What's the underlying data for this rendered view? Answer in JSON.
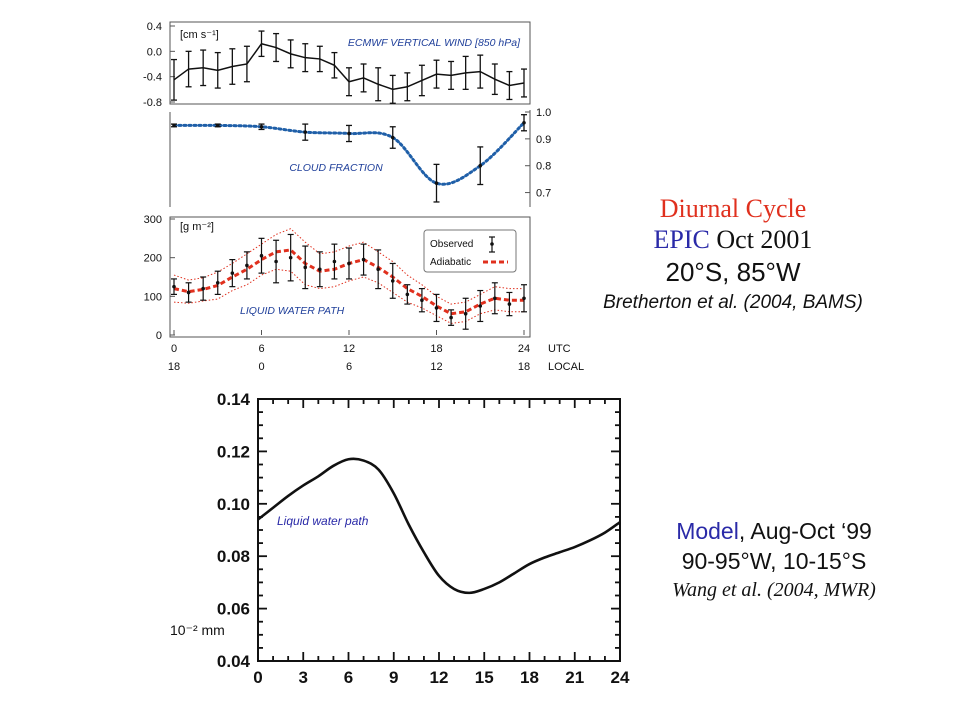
{
  "slide": {
    "epic": {
      "line1": "Diurnal Cycle",
      "line2_a": "EPIC",
      "line2_b": " Oct 2001",
      "line3": "20°S, 85°W",
      "line4": "Bretherton et al. (2004, BAMS)"
    },
    "model": {
      "line1_a": "Model",
      "line1_b": ", Aug-Oct ‘99",
      "line2": "90-95°W, 10-15°S",
      "line3": "Wang et al. (2004, MWR)"
    },
    "colors": {
      "red": "#e0301e",
      "blue": "#2a2aa8",
      "dotted_blue": "#1f5fa8",
      "black": "#111111"
    }
  },
  "chart_data": [
    {
      "type": "line",
      "title": "ECMWF VERTICAL WIND [850 hPa]",
      "unit_label": "[cm s⁻¹]",
      "x": [
        0,
        1,
        2,
        3,
        4,
        5,
        6,
        7,
        8,
        9,
        10,
        11,
        12,
        13,
        14,
        15,
        16,
        17,
        18,
        19,
        20,
        21,
        22,
        23,
        24
      ],
      "values": [
        -0.45,
        -0.28,
        -0.26,
        -0.3,
        -0.24,
        -0.2,
        0.12,
        0.06,
        -0.04,
        -0.1,
        -0.12,
        -0.22,
        -0.48,
        -0.42,
        -0.52,
        -0.6,
        -0.56,
        -0.46,
        -0.36,
        -0.38,
        -0.34,
        -0.32,
        -0.44,
        -0.54,
        -0.5
      ],
      "error": [
        0.32,
        0.28,
        0.28,
        0.28,
        0.28,
        0.28,
        0.2,
        0.22,
        0.22,
        0.22,
        0.2,
        0.2,
        0.22,
        0.22,
        0.26,
        0.22,
        0.22,
        0.24,
        0.22,
        0.22,
        0.26,
        0.26,
        0.24,
        0.22,
        0.22
      ],
      "yticks": [
        {
          "v": 0.4,
          "t": "0.4"
        },
        {
          "v": 0.0,
          "t": "0.0"
        },
        {
          "v": -0.4,
          "t": "-0.4"
        },
        {
          "v": -0.8,
          "t": "-0.8"
        }
      ],
      "ylim": [
        -0.8,
        0.4
      ]
    },
    {
      "type": "line",
      "title": "CLOUD FRACTION",
      "x": [
        0,
        3,
        6,
        9,
        12,
        15,
        18,
        21,
        24
      ],
      "values": [
        0.95,
        0.95,
        0.945,
        0.925,
        0.92,
        0.905,
        0.735,
        0.8,
        0.96
      ],
      "error": [
        0.005,
        0.005,
        0.01,
        0.03,
        0.03,
        0.04,
        0.07,
        0.07,
        0.03
      ],
      "yticks": [
        {
          "v": 1.0,
          "t": "1.0"
        },
        {
          "v": 0.9,
          "t": "0.9"
        },
        {
          "v": 0.8,
          "t": "0.8"
        },
        {
          "v": 0.7,
          "t": "0.7"
        }
      ],
      "ylim": [
        0.65,
        1.0
      ]
    },
    {
      "type": "line",
      "title": "LIQUID WATER PATH",
      "unit_label": "[g m⁻²]",
      "x": [
        0,
        1,
        2,
        3,
        4,
        5,
        6,
        7,
        8,
        9,
        10,
        11,
        12,
        13,
        14,
        15,
        16,
        17,
        18,
        19,
        20,
        21,
        22,
        23,
        24
      ],
      "observed": [
        125,
        110,
        120,
        135,
        160,
        180,
        205,
        190,
        200,
        175,
        170,
        190,
        185,
        195,
        170,
        140,
        105,
        90,
        70,
        45,
        55,
        75,
        95,
        80,
        95
      ],
      "observed_error": [
        20,
        25,
        30,
        30,
        35,
        35,
        45,
        55,
        60,
        55,
        45,
        45,
        40,
        40,
        50,
        45,
        25,
        30,
        35,
        20,
        40,
        40,
        40,
        30,
        35
      ],
      "adiabatic": [
        120,
        112,
        118,
        128,
        150,
        170,
        195,
        215,
        220,
        185,
        165,
        170,
        185,
        195,
        175,
        150,
        120,
        100,
        75,
        55,
        60,
        80,
        95,
        90,
        90
      ],
      "adiabatic_band": [
        35,
        30,
        30,
        35,
        35,
        40,
        40,
        45,
        55,
        55,
        45,
        45,
        45,
        45,
        40,
        40,
        35,
        30,
        25,
        25,
        25,
        25,
        30,
        30,
        30
      ],
      "yticks": [
        {
          "v": 300,
          "t": "300"
        },
        {
          "v": 200,
          "t": "200"
        },
        {
          "v": 100,
          "t": "100"
        },
        {
          "v": 0,
          "t": "0"
        }
      ],
      "ylim": [
        0,
        300
      ],
      "legend": [
        {
          "label": "Observed"
        },
        {
          "label": "Adiabatic"
        }
      ],
      "xticks": [
        {
          "v": 0,
          "t": "0"
        },
        {
          "v": 6,
          "t": "6"
        },
        {
          "v": 12,
          "t": "12"
        },
        {
          "v": 18,
          "t": "18"
        },
        {
          "v": 24,
          "t": "24"
        }
      ],
      "xlabel_utc": "UTC",
      "xticks_local": [
        {
          "v": 0,
          "t": "18"
        },
        {
          "v": 6,
          "t": "0"
        },
        {
          "v": 12,
          "t": "6"
        },
        {
          "v": 18,
          "t": "12"
        },
        {
          "v": 24,
          "t": "18"
        }
      ],
      "xlabel_local": "LOCAL"
    },
    {
      "type": "line",
      "title": "Liquid water path",
      "unit_label": "10⁻² mm",
      "x": [
        0,
        1,
        2,
        3,
        4,
        5,
        6,
        7,
        8,
        9,
        10,
        11,
        12,
        13,
        14,
        15,
        16,
        17,
        18,
        19,
        20,
        21,
        22,
        23,
        24
      ],
      "values": [
        0.094,
        0.0985,
        0.103,
        0.107,
        0.1105,
        0.1145,
        0.117,
        0.1165,
        0.113,
        0.104,
        0.092,
        0.0815,
        0.0725,
        0.0675,
        0.066,
        0.0675,
        0.07,
        0.0735,
        0.077,
        0.0795,
        0.0815,
        0.0835,
        0.086,
        0.089,
        0.093
      ],
      "yticks": [
        {
          "v": 0.14,
          "t": "0.14"
        },
        {
          "v": 0.12,
          "t": "0.12"
        },
        {
          "v": 0.1,
          "t": "0.10"
        },
        {
          "v": 0.08,
          "t": "0.08"
        },
        {
          "v": 0.06,
          "t": "0.06"
        },
        {
          "v": 0.04,
          "t": "0.04"
        }
      ],
      "xticks": [
        {
          "v": 0,
          "t": "0"
        },
        {
          "v": 3,
          "t": "3"
        },
        {
          "v": 6,
          "t": "6"
        },
        {
          "v": 9,
          "t": "9"
        },
        {
          "v": 12,
          "t": "12"
        },
        {
          "v": 15,
          "t": "15"
        },
        {
          "v": 18,
          "t": "18"
        },
        {
          "v": 21,
          "t": "21"
        },
        {
          "v": 24,
          "t": "24"
        }
      ],
      "xlim": [
        0,
        24
      ],
      "ylim": [
        0.04,
        0.14
      ]
    }
  ]
}
